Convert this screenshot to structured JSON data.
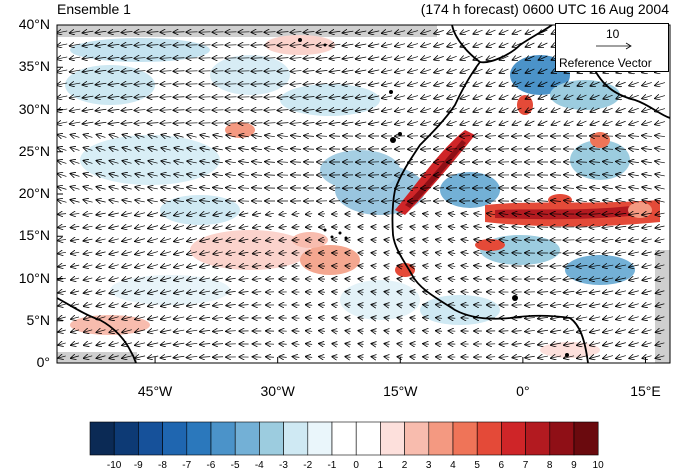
{
  "header": {
    "title_left": "Ensemble 1",
    "title_right": "(174 h forecast) 0600 UTC 16 Aug 2004"
  },
  "reference_vector": {
    "magnitude": "10",
    "label": "Reference Vector"
  },
  "map": {
    "lat_labels": [
      "40°N",
      "35°N",
      "30°N",
      "25°N",
      "20°N",
      "15°N",
      "10°N",
      "5°N",
      "0°"
    ],
    "lon_labels": [
      "45°W",
      "30°W",
      "15°W",
      "0°",
      "15°E"
    ],
    "lon_range": [
      -57,
      18
    ],
    "lat_range": [
      0,
      40
    ]
  },
  "colorbar": {
    "labels": [
      "-10",
      "-9",
      "-8",
      "-7",
      "-6",
      "-5",
      "-4",
      "-3",
      "-2",
      "-1",
      "0",
      "1",
      "2",
      "3",
      "4",
      "5",
      "6",
      "7",
      "8",
      "9",
      "10"
    ],
    "colors": [
      "#0b2a55",
      "#0d3a75",
      "#16519a",
      "#1f66b0",
      "#2b78bc",
      "#4b93c9",
      "#73b0d6",
      "#9cccdf",
      "#cfe9f3",
      "#eaf6fb",
      "#ffffff",
      "#ffffff",
      "#fde0dc",
      "#f8bcae",
      "#f49981",
      "#ef7458",
      "#e44a38",
      "#cf2528",
      "#b31a20",
      "#8f0f16",
      "#6a0a0e"
    ]
  }
}
